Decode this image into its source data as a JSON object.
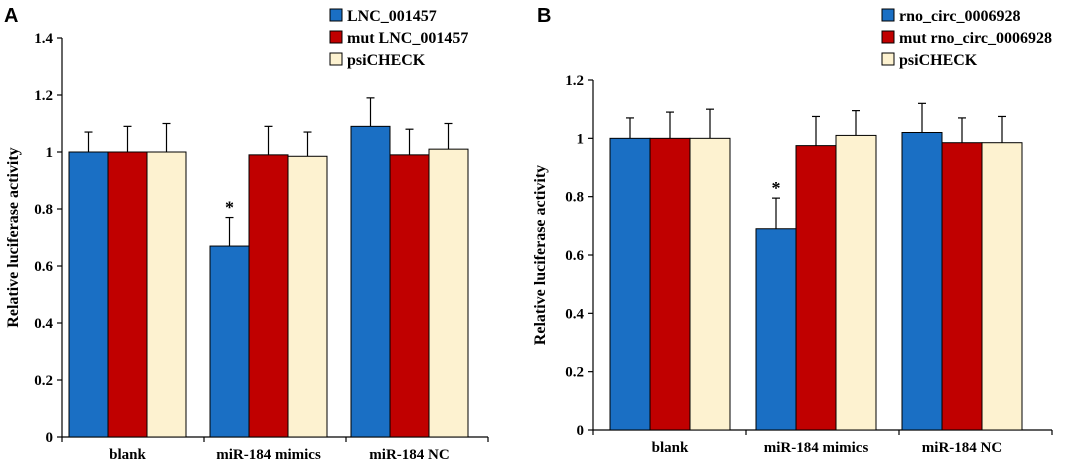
{
  "chart_data": [
    {
      "type": "bar",
      "panel_label": "A",
      "title": "",
      "xlabel": "",
      "ylabel": "Relative luciferase activity",
      "ylim": [
        0,
        1.4
      ],
      "yticks": [
        "0",
        "0.2",
        "0.4",
        "0.6",
        "0.8",
        "1",
        "1.2",
        "1.4"
      ],
      "categories": [
        "blank",
        "miR-184 mimics",
        "miR-184 NC"
      ],
      "legend_position": "top-right",
      "grid": false,
      "series": [
        {
          "name": "LNC_001457",
          "color": "#1a6fc4",
          "values": [
            1.0,
            0.67,
            1.09
          ],
          "errors": [
            0.07,
            0.1,
            0.1
          ]
        },
        {
          "name": "mut LNC_001457",
          "color": "#c00000",
          "values": [
            1.0,
            0.99,
            0.99
          ],
          "errors": [
            0.09,
            0.1,
            0.09
          ]
        },
        {
          "name": "psiCHECK",
          "color": "#fdf2d0",
          "values": [
            1.0,
            0.985,
            1.01
          ],
          "errors": [
            0.1,
            0.085,
            0.09
          ]
        }
      ],
      "annotations": [
        {
          "text": "*",
          "category": 1,
          "series": 0
        }
      ]
    },
    {
      "type": "bar",
      "panel_label": "B",
      "title": "",
      "xlabel": "",
      "ylabel": "Relative luciferase activity",
      "ylim": [
        0,
        1.2
      ],
      "yticks": [
        "0",
        "0.2",
        "0.4",
        "0.6",
        "0.8",
        "1",
        "1.2"
      ],
      "categories": [
        "blank",
        "miR-184 mimics",
        "miR-184 NC"
      ],
      "legend_position": "top-right",
      "grid": false,
      "series": [
        {
          "name": "rno_circ_0006928",
          "color": "#1a6fc4",
          "values": [
            1.0,
            0.69,
            1.02
          ],
          "errors": [
            0.07,
            0.105,
            0.1
          ]
        },
        {
          "name": "mut rno_circ_0006928",
          "color": "#c00000",
          "values": [
            1.0,
            0.975,
            0.985
          ],
          "errors": [
            0.09,
            0.1,
            0.085
          ]
        },
        {
          "name": "psiCHECK",
          "color": "#fdf2d0",
          "values": [
            1.0,
            1.01,
            0.985
          ],
          "errors": [
            0.1,
            0.085,
            0.09
          ]
        }
      ],
      "annotations": [
        {
          "text": "*",
          "category": 1,
          "series": 0
        }
      ]
    }
  ]
}
